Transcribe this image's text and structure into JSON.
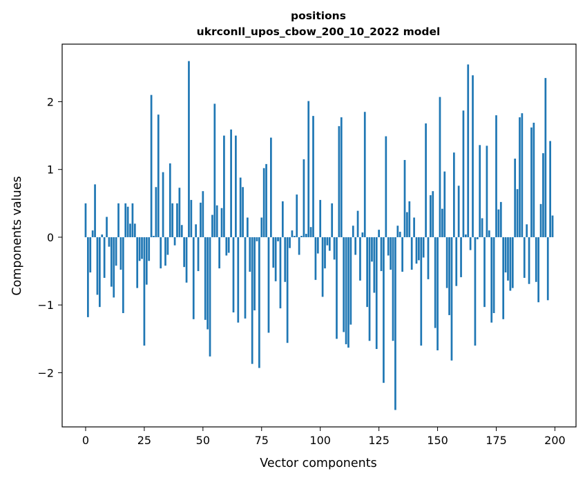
{
  "chart_data": {
    "type": "bar",
    "title_line1": "positions",
    "title_line2": "ukrconll_upos_cbow_200_10_2022 model",
    "xlabel": "Vector components",
    "ylabel": "Components values",
    "xlim": [
      -10,
      209
    ],
    "ylim": [
      -2.8,
      2.85
    ],
    "xticks": [
      0,
      25,
      50,
      75,
      100,
      125,
      150,
      175,
      200
    ],
    "xtick_labels": [
      "0",
      "25",
      "50",
      "75",
      "100",
      "125",
      "150",
      "175",
      "200"
    ],
    "yticks": [
      -2,
      -1,
      0,
      1,
      2
    ],
    "ytick_labels": [
      "−2",
      "−1",
      "0",
      "1",
      "2"
    ],
    "grid": false,
    "bar_color": "#1f77b4",
    "x": [
      0,
      1,
      2,
      3,
      4,
      5,
      6,
      7,
      8,
      9,
      10,
      11,
      12,
      13,
      14,
      15,
      16,
      17,
      18,
      19,
      20,
      21,
      22,
      23,
      24,
      25,
      26,
      27,
      28,
      29,
      30,
      31,
      32,
      33,
      34,
      35,
      36,
      37,
      38,
      39,
      40,
      41,
      42,
      43,
      44,
      45,
      46,
      47,
      48,
      49,
      50,
      51,
      52,
      53,
      54,
      55,
      56,
      57,
      58,
      59,
      60,
      61,
      62,
      63,
      64,
      65,
      66,
      67,
      68,
      69,
      70,
      71,
      72,
      73,
      74,
      75,
      76,
      77,
      78,
      79,
      80,
      81,
      82,
      83,
      84,
      85,
      86,
      87,
      88,
      89,
      90,
      91,
      92,
      93,
      94,
      95,
      96,
      97,
      98,
      99,
      100,
      101,
      102,
      103,
      104,
      105,
      106,
      107,
      108,
      109,
      110,
      111,
      112,
      113,
      114,
      115,
      116,
      117,
      118,
      119,
      120,
      121,
      122,
      123,
      124,
      125,
      126,
      127,
      128,
      129,
      130,
      131,
      132,
      133,
      134,
      135,
      136,
      137,
      138,
      139,
      140,
      141,
      142,
      143,
      144,
      145,
      146,
      147,
      148,
      149,
      150,
      151,
      152,
      153,
      154,
      155,
      156,
      157,
      158,
      159,
      160,
      161,
      162,
      163,
      164,
      165,
      166,
      167,
      168,
      169,
      170,
      171,
      172,
      173,
      174,
      175,
      176,
      177,
      178,
      179,
      180,
      181,
      182,
      183,
      184,
      185,
      186,
      187,
      188,
      189,
      190,
      191,
      192,
      193,
      194,
      195,
      196,
      197,
      198,
      199
    ],
    "values": [
      0.5,
      -1.18,
      -0.52,
      0.1,
      0.78,
      -0.85,
      -1.03,
      0.04,
      -0.6,
      0.3,
      -0.14,
      -0.73,
      -0.89,
      -0.42,
      0.5,
      -0.48,
      -1.12,
      0.5,
      0.45,
      0.2,
      0.5,
      0.2,
      -0.75,
      -0.35,
      -0.32,
      -1.6,
      -0.7,
      -0.35,
      2.1,
      0.02,
      0.74,
      1.81,
      -0.46,
      0.96,
      -0.42,
      -0.26,
      1.09,
      0.5,
      -0.12,
      0.5,
      0.73,
      0.18,
      -0.44,
      -0.67,
      2.6,
      0.55,
      -1.21,
      0.19,
      -0.5,
      0.51,
      0.68,
      -1.22,
      -1.36,
      -1.76,
      0.33,
      1.97,
      0.47,
      -0.46,
      0.43,
      1.5,
      -0.27,
      -0.23,
      1.59,
      -1.11,
      1.5,
      -1.26,
      0.88,
      0.74,
      -1.2,
      0.29,
      -0.51,
      -1.87,
      -1.08,
      -0.06,
      -1.93,
      0.29,
      1.02,
      1.08,
      -1.41,
      1.47,
      -0.45,
      -0.65,
      -0.06,
      -1.05,
      0.53,
      -0.66,
      -1.56,
      -0.16,
      0.1,
      0.02,
      0.63,
      -0.26,
      0.02,
      1.15,
      0.05,
      2.01,
      0.15,
      1.79,
      -0.63,
      -0.24,
      0.55,
      -0.88,
      -0.46,
      -0.12,
      -0.2,
      0.5,
      -0.33,
      -1.5,
      1.64,
      1.77,
      -1.4,
      -1.58,
      -1.63,
      -1.29,
      0.17,
      -0.26,
      0.39,
      -0.64,
      0.07,
      1.85,
      -1.03,
      -1.53,
      -0.36,
      -0.82,
      -1.65,
      0.11,
      -0.5,
      -2.15,
      1.49,
      -0.27,
      -0.48,
      -1.53,
      -2.55,
      0.17,
      0.08,
      -0.51,
      1.14,
      0.37,
      0.53,
      -0.48,
      0.29,
      -0.39,
      -0.34,
      -1.6,
      -0.3,
      1.68,
      -0.62,
      0.62,
      0.68,
      -1.34,
      -1.67,
      2.07,
      0.42,
      0.97,
      -0.75,
      -1.15,
      -1.82,
      1.25,
      -0.72,
      0.76,
      -0.59,
      1.87,
      0.04,
      2.55,
      -0.19,
      2.39,
      -1.6,
      -0.03,
      1.36,
      0.28,
      -1.03,
      1.35,
      0.1,
      -1.26,
      -1.12,
      1.8,
      0.41,
      0.52,
      -1.21,
      -0.52,
      -0.64,
      -0.79,
      -0.75,
      1.16,
      0.71,
      1.77,
      1.83,
      -0.6,
      0.19,
      -0.69,
      1.62,
      1.69,
      -0.66,
      -0.96,
      0.49,
      1.24,
      2.35,
      -0.93,
      1.42,
      0.32
    ]
  }
}
